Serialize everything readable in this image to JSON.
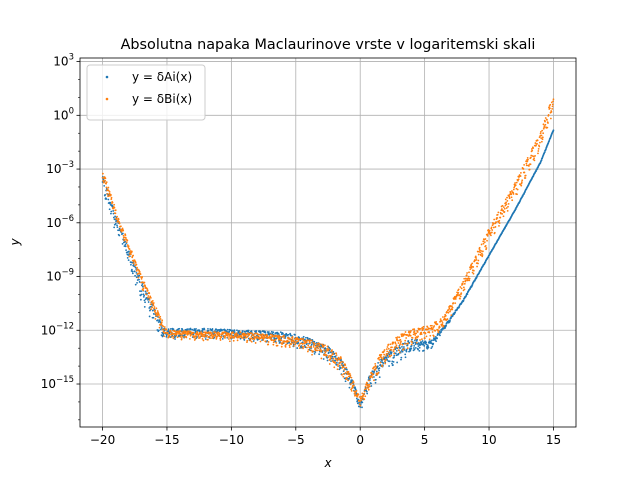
{
  "chart_data": {
    "type": "scatter",
    "title": "Absolutna napaka Maclaurinove vrste v logaritemski skali",
    "xlabel": "x",
    "ylabel": "y",
    "xlim": [
      -21.75,
      16.75
    ],
    "ylim_log10": [
      -17.4,
      3.2
    ],
    "yscale": "log",
    "grid": true,
    "legend_position": "upper-left",
    "x_ticks": [
      {
        "value": -20,
        "label": "−20"
      },
      {
        "value": -15,
        "label": "−15"
      },
      {
        "value": -10,
        "label": "−10"
      },
      {
        "value": -5,
        "label": "−5"
      },
      {
        "value": 0,
        "label": "0"
      },
      {
        "value": 5,
        "label": "5"
      },
      {
        "value": 10,
        "label": "10"
      },
      {
        "value": 15,
        "label": "15"
      }
    ],
    "y_ticks": [
      {
        "exp": 3,
        "base": "10",
        "sup": "3"
      },
      {
        "exp": 0,
        "base": "10",
        "sup": "0"
      },
      {
        "exp": -3,
        "base": "10",
        "sup": "−3"
      },
      {
        "exp": -6,
        "base": "10",
        "sup": "−6"
      },
      {
        "exp": -9,
        "base": "10",
        "sup": "−9"
      },
      {
        "exp": -12,
        "base": "10",
        "sup": "−12"
      },
      {
        "exp": -15,
        "base": "10",
        "sup": "−15"
      }
    ],
    "series": [
      {
        "name": "y = δAi(x)",
        "legend_label": "y = δAi(x)",
        "color": "#1f77b4",
        "marker": "point",
        "profile_x": [
          -20,
          -19,
          -18,
          -17,
          -16,
          -15.2,
          -15,
          -12,
          -9,
          -6,
          -4,
          -2.5,
          -1.5,
          -0.7,
          -0.3,
          0,
          0.3,
          0.7,
          1.5,
          2.5,
          4,
          5.5,
          6.5,
          8,
          10,
          12,
          14,
          15
        ],
        "profile_log10_y": [
          -3.2,
          -5.5,
          -7.4,
          -9.2,
          -10.7,
          -11.9,
          -11.9,
          -11.9,
          -12.0,
          -12.1,
          -12.4,
          -12.9,
          -13.6,
          -14.6,
          -15.4,
          -16.2,
          -15.4,
          -14.5,
          -13.7,
          -13.0,
          -12.5,
          -12.6,
          -11.8,
          -10.3,
          -7.8,
          -5.3,
          -2.6,
          -0.8
        ],
        "scatter_amplitude_log10": [
          1.2,
          1.0,
          1.0,
          1.2,
          1.1,
          0.9,
          0.6,
          0.6,
          0.6,
          0.7,
          0.8,
          0.9,
          1.0,
          0.9,
          0.6,
          0.5,
          0.6,
          0.9,
          1.0,
          1.0,
          0.9,
          0.5,
          0.2,
          0.1,
          0.05,
          0.05,
          0.05,
          0.05
        ]
      },
      {
        "name": "y = δBi(x)",
        "legend_label": "y = δBi(x)",
        "color": "#ff7f0e",
        "marker": "point",
        "profile_x": [
          -20,
          -19,
          -18,
          -17,
          -16,
          -15.2,
          -15,
          -12,
          -9,
          -6,
          -4,
          -2.5,
          -1.5,
          -0.7,
          -0.3,
          0,
          0.3,
          0.7,
          1.5,
          2.5,
          4,
          5.5,
          6.5,
          8,
          10,
          12,
          14,
          15
        ],
        "profile_log10_y": [
          -3.0,
          -5.2,
          -7.1,
          -8.9,
          -10.5,
          -11.7,
          -12.0,
          -12.1,
          -12.1,
          -12.3,
          -12.5,
          -12.9,
          -13.5,
          -14.5,
          -15.3,
          -15.8,
          -15.3,
          -14.5,
          -13.4,
          -12.5,
          -11.9,
          -11.7,
          -11.2,
          -9.2,
          -6.3,
          -3.8,
          -0.9,
          1.2
        ],
        "scatter_amplitude_log10": [
          0.7,
          0.7,
          0.7,
          0.7,
          0.8,
          0.7,
          0.5,
          0.5,
          0.6,
          0.7,
          0.8,
          0.9,
          1.0,
          1.0,
          0.6,
          0.5,
          0.6,
          1.0,
          1.1,
          1.1,
          1.0,
          0.8,
          0.7,
          0.8,
          0.9,
          0.9,
          1.0,
          1.1
        ]
      }
    ]
  }
}
